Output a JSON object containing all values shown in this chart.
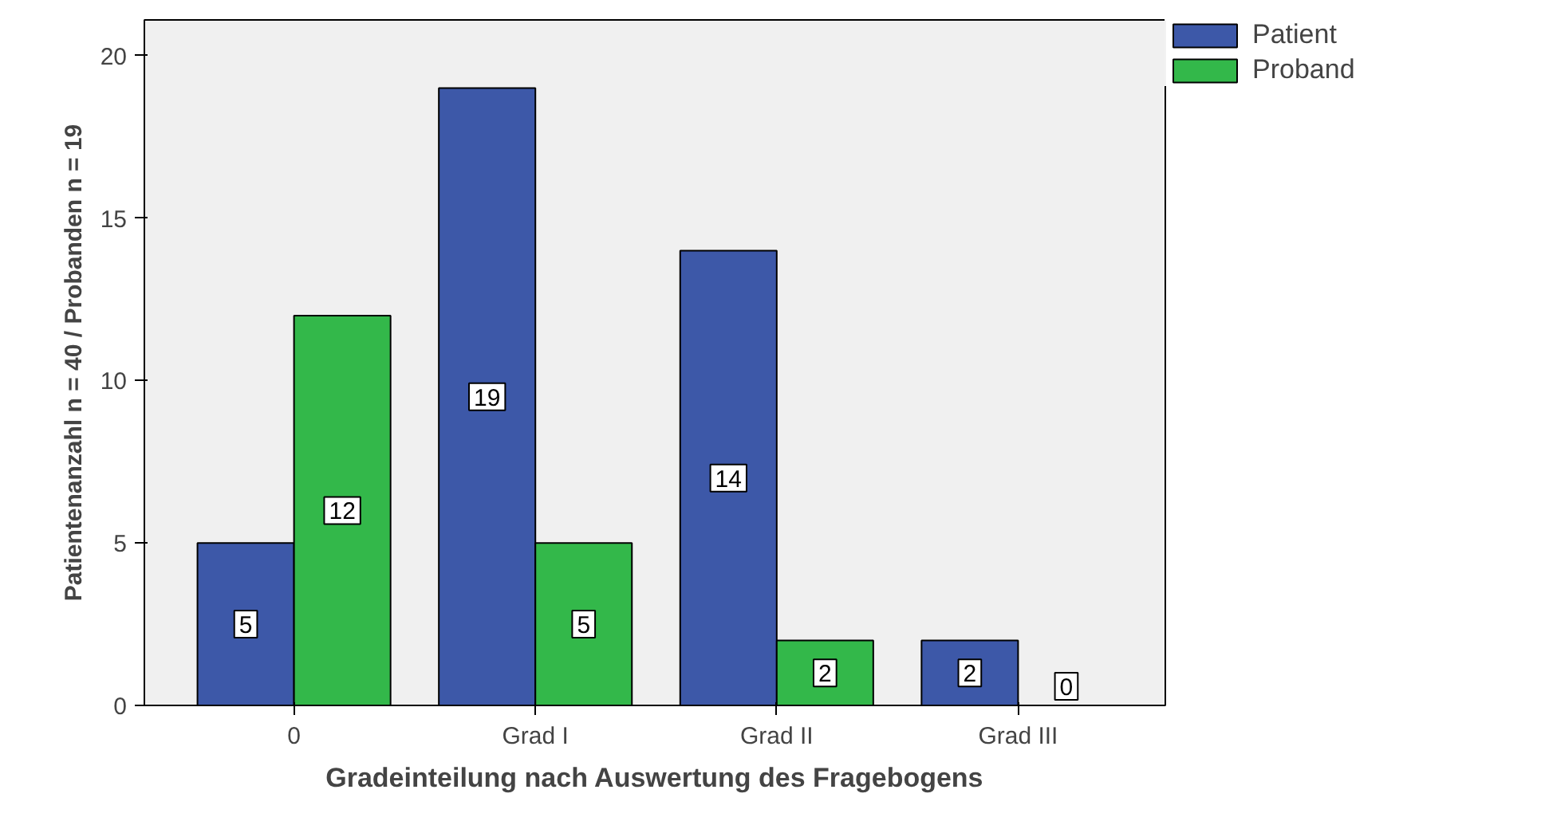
{
  "chart_data": {
    "type": "bar",
    "xlabel": "Gradeinteilung nach Auswertung des Fragebogens",
    "ylabel": "Patientenanzahl n = 40 / Probanden n = 19",
    "categories": [
      "0",
      "Grad I",
      "Grad II",
      "Grad III"
    ],
    "series": [
      {
        "name": "Patient",
        "color": "#3d58a8",
        "values": [
          5,
          19,
          14,
          2
        ]
      },
      {
        "name": "Proband",
        "color": "#33b84a",
        "values": [
          12,
          5,
          2,
          0
        ]
      }
    ],
    "ylim": [
      0,
      21.1
    ],
    "yticks": [
      0,
      5,
      10,
      15,
      20
    ],
    "grid": false,
    "legend": "top right",
    "data_labels": true
  }
}
